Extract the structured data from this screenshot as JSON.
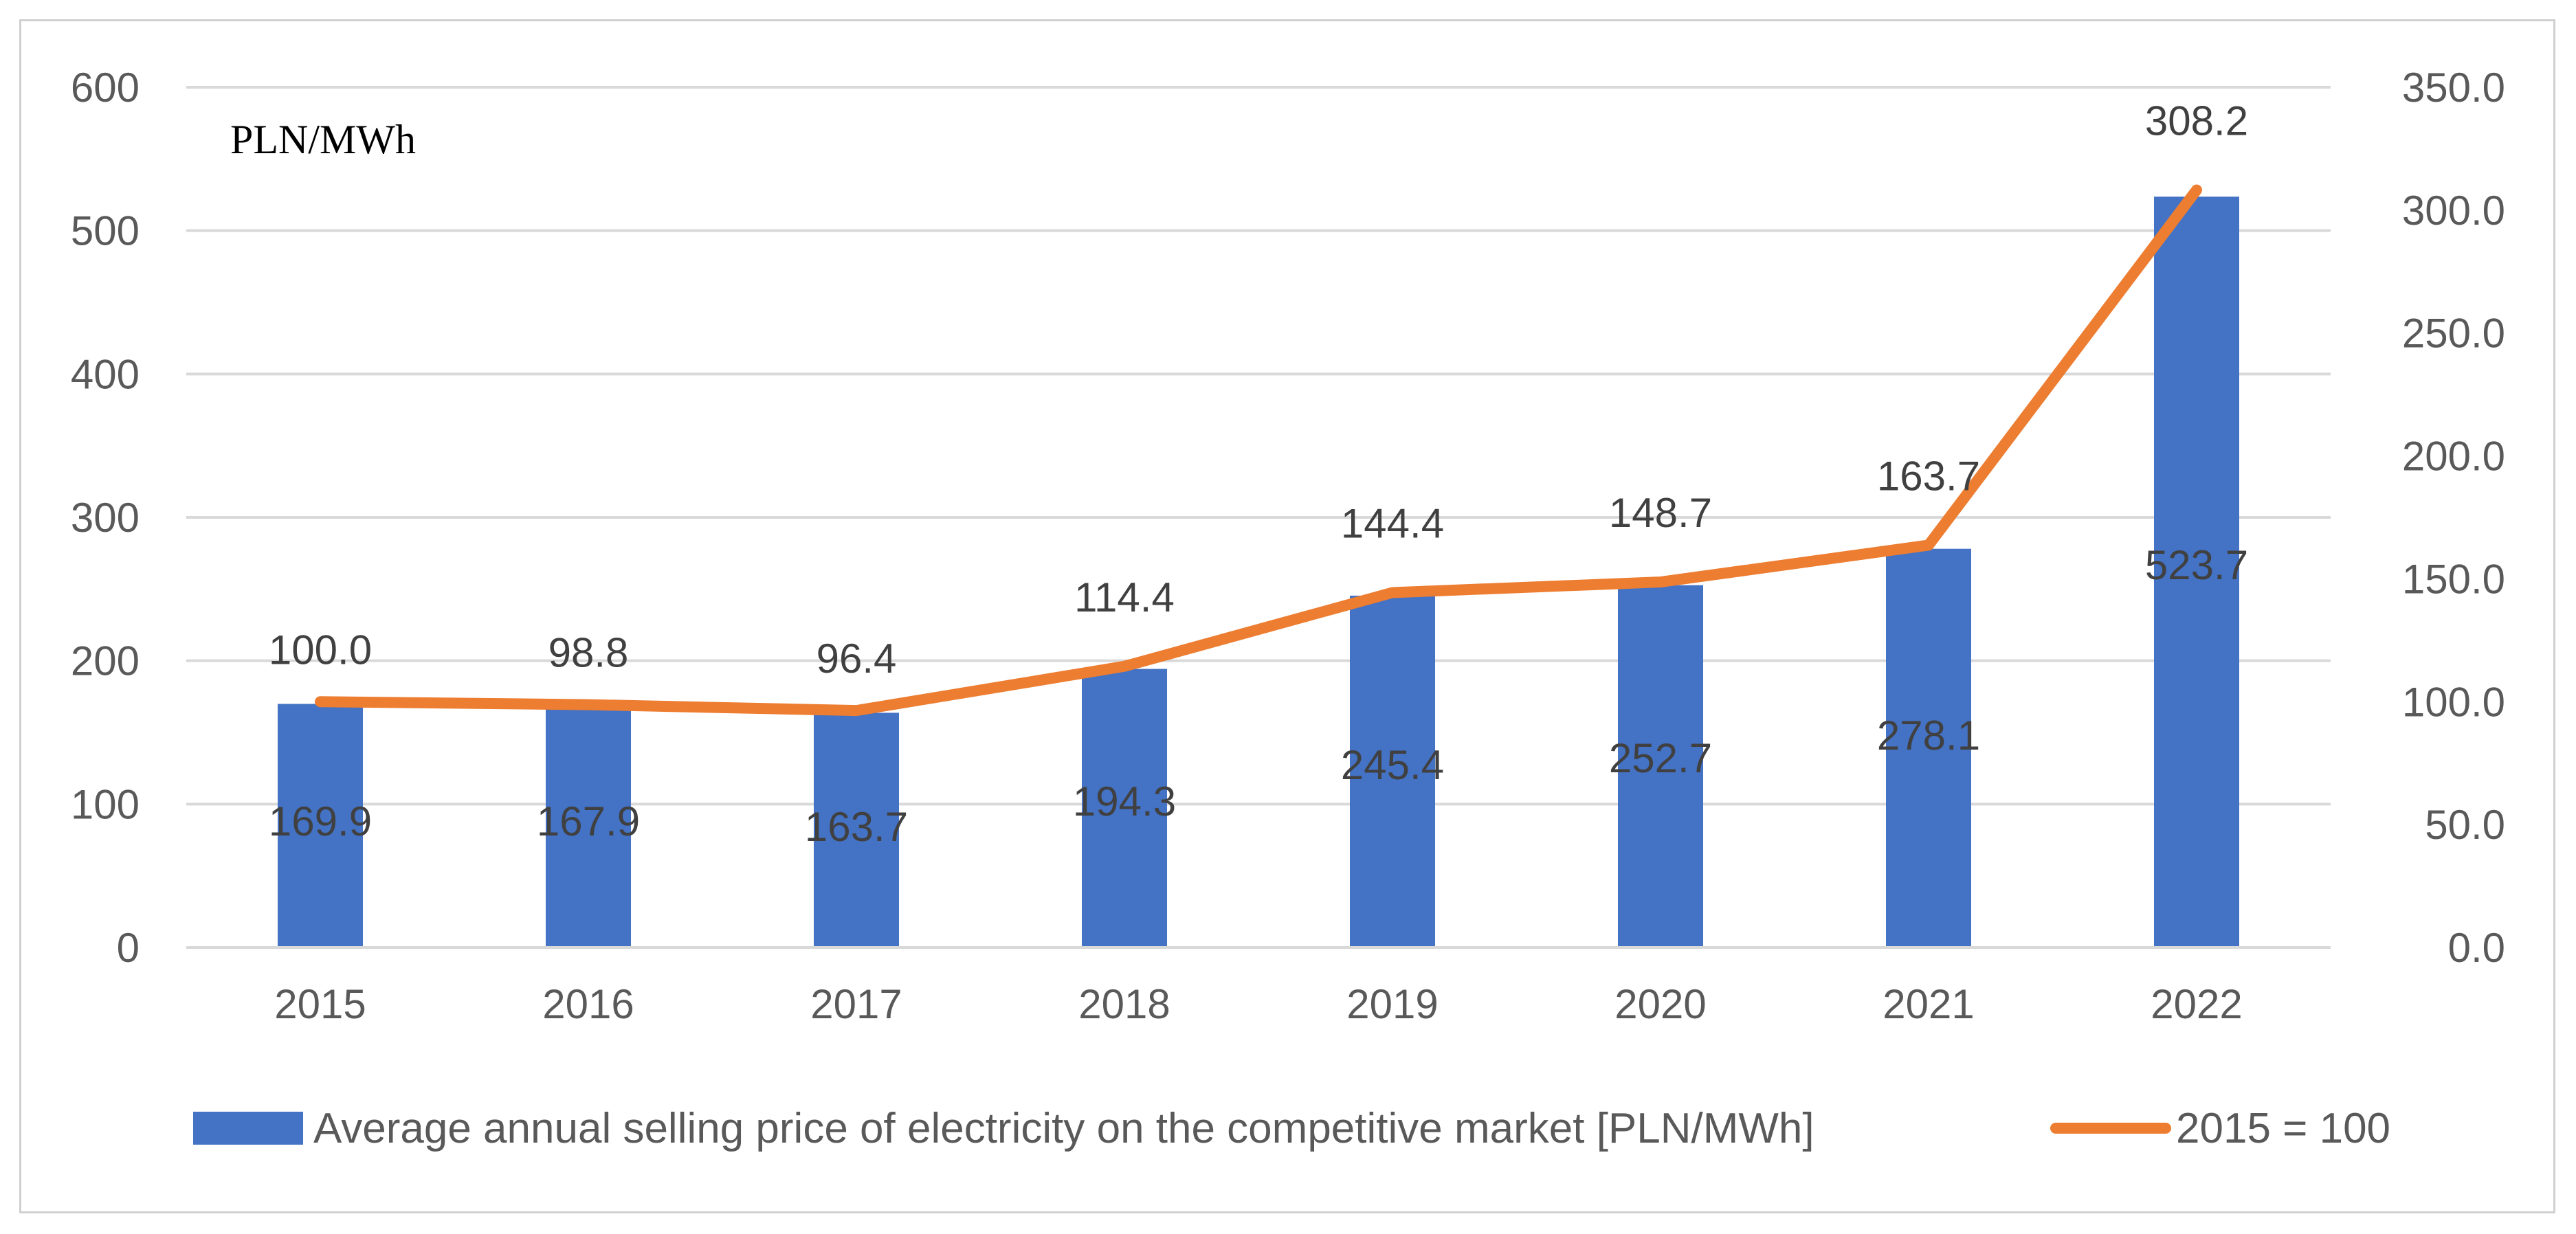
{
  "chart_data": {
    "type": "bar+line",
    "categories": [
      "2015",
      "2016",
      "2017",
      "2018",
      "2019",
      "2020",
      "2021",
      "2022"
    ],
    "series": [
      {
        "name": "Average annual selling price of electricity on the competitive market [PLN/MWh]",
        "type": "bar",
        "axis": "left",
        "color": "#4472C4",
        "values": [
          169.9,
          167.9,
          163.7,
          194.3,
          245.4,
          252.7,
          278.1,
          523.7
        ],
        "labels": [
          "169.9",
          "167.9",
          "163.7",
          "194.3",
          "245.4",
          "252.7",
          "278.1",
          "523.7"
        ]
      },
      {
        "name": "2015 = 100",
        "type": "line",
        "axis": "right",
        "color": "#ED7D31",
        "values": [
          100.0,
          98.8,
          96.4,
          114.4,
          144.4,
          148.7,
          163.7,
          308.2
        ],
        "labels": [
          "100.0",
          "98.8",
          "96.4",
          "114.4",
          "144.4",
          "148.7",
          "163.7",
          "308.2"
        ]
      }
    ],
    "y_left": {
      "range": [
        0,
        600
      ],
      "ticks": [
        0,
        100,
        200,
        300,
        400,
        500,
        600
      ],
      "tick_labels": [
        "0",
        "100",
        "200",
        "300",
        "400",
        "500",
        "600"
      ],
      "unit_label": "PLN/MWh"
    },
    "y_right": {
      "range": [
        0,
        350
      ],
      "ticks": [
        0,
        50,
        100,
        150,
        200,
        250,
        300,
        350
      ],
      "tick_labels": [
        "0.0",
        "50.0",
        "100.0",
        "150.0",
        "200.0",
        "250.0",
        "300.0",
        "350.0"
      ]
    },
    "grid": true,
    "legend": "bottom",
    "title": ""
  }
}
